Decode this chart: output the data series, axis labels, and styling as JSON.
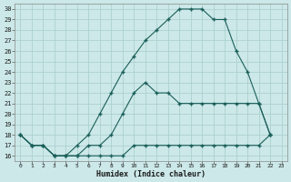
{
  "xlabel": "Humidex (Indice chaleur)",
  "background_color": "#cce8e8",
  "grid_color": "#a8cccc",
  "line_color": "#1a5f5a",
  "xlim": [
    -0.5,
    23.5
  ],
  "ylim": [
    15.5,
    30.5
  ],
  "yticks": [
    16,
    17,
    18,
    19,
    20,
    21,
    22,
    23,
    24,
    25,
    26,
    27,
    28,
    29,
    30
  ],
  "xticks": [
    0,
    1,
    2,
    3,
    4,
    5,
    6,
    7,
    8,
    9,
    10,
    11,
    12,
    13,
    14,
    15,
    16,
    17,
    18,
    19,
    20,
    21,
    22,
    23
  ],
  "line1_x": [
    0,
    1,
    2,
    3,
    4,
    5,
    6,
    7,
    8,
    9,
    10,
    11,
    12,
    13,
    14,
    15,
    16,
    17,
    18,
    19,
    20,
    21,
    22
  ],
  "line1_y": [
    18,
    17,
    17,
    16,
    16,
    17,
    18,
    20,
    22,
    24,
    25.5,
    27,
    28,
    29,
    30,
    30,
    30,
    29,
    29,
    26,
    24,
    21,
    18
  ],
  "line2_x": [
    0,
    1,
    2,
    3,
    4,
    5,
    6,
    7,
    8,
    9,
    10,
    11,
    12,
    13,
    14,
    15,
    16,
    17,
    18,
    19,
    20,
    21,
    22
  ],
  "line2_y": [
    18,
    17,
    17,
    16,
    16,
    16,
    17,
    17,
    18,
    20,
    22,
    23,
    22,
    22,
    21,
    21,
    21,
    21,
    21,
    21,
    21,
    21,
    18
  ],
  "line3_x": [
    0,
    1,
    2,
    3,
    4,
    5,
    6,
    7,
    8,
    9,
    10,
    11,
    12,
    13,
    14,
    15,
    16,
    17,
    18,
    19,
    20,
    21,
    22
  ],
  "line3_y": [
    18,
    17,
    17,
    16,
    16,
    16,
    16,
    16,
    16,
    16,
    17,
    17,
    17,
    17,
    17,
    17,
    17,
    17,
    17,
    17,
    17,
    17,
    18
  ]
}
